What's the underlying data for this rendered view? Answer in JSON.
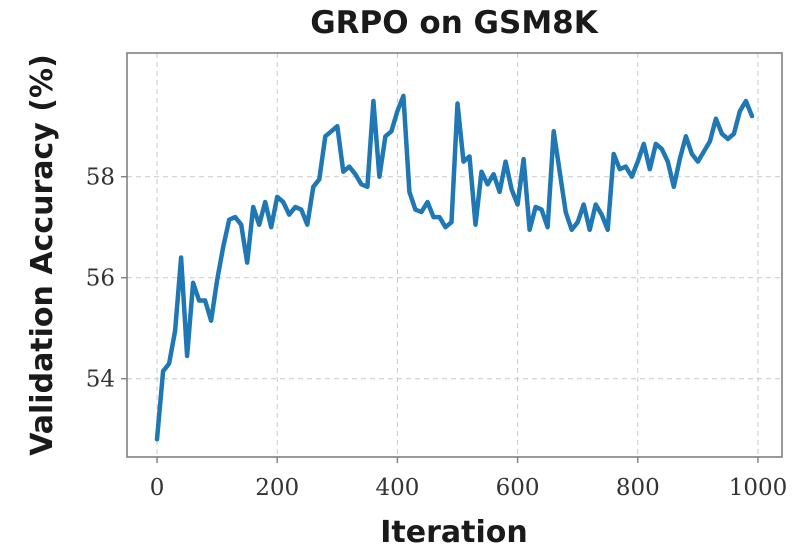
{
  "chart_data": {
    "type": "line",
    "title": "GRPO on GSM8K",
    "xlabel": "Iteration",
    "ylabel": "Validation Accuracy (%)",
    "xlim": [
      -50,
      1040
    ],
    "ylim": [
      52.45,
      60.45
    ],
    "xticks": [
      0,
      200,
      400,
      600,
      800,
      1000
    ],
    "xtick_labels": [
      "0",
      "200",
      "400",
      "600",
      "800",
      "1000"
    ],
    "yticks": [
      54,
      56,
      58
    ],
    "ytick_labels": [
      "54",
      "56",
      "58"
    ],
    "grid": true,
    "colors": {
      "line": "#1f77b4"
    },
    "series": [
      {
        "x": [
          0,
          10,
          20,
          30,
          40,
          50,
          60,
          70,
          80,
          90,
          100,
          110,
          120,
          130,
          140,
          150,
          160,
          170,
          180,
          190,
          200,
          210,
          220,
          230,
          240,
          250,
          260,
          270,
          280,
          290,
          300,
          310,
          320,
          330,
          340,
          350,
          360,
          370,
          380,
          390,
          400,
          410,
          420,
          430,
          440,
          450,
          460,
          470,
          480,
          490,
          500,
          510,
          520,
          530,
          540,
          550,
          560,
          570,
          580,
          590,
          600,
          610,
          620,
          630,
          640,
          650,
          660,
          670,
          680,
          690,
          700,
          710,
          720,
          730,
          740,
          750,
          760,
          770,
          780,
          790,
          800,
          810,
          820,
          830,
          840,
          850,
          860,
          870,
          880,
          890,
          900,
          910,
          920,
          930,
          940,
          950,
          960,
          970,
          980,
          990
        ],
        "values": [
          52.8,
          54.15,
          54.3,
          54.95,
          56.4,
          54.45,
          55.9,
          55.55,
          55.55,
          55.15,
          55.95,
          56.6,
          57.15,
          57.2,
          57.05,
          56.3,
          57.4,
          57.05,
          57.5,
          57.0,
          57.6,
          57.5,
          57.25,
          57.4,
          57.35,
          57.05,
          57.8,
          57.95,
          58.8,
          58.9,
          59.0,
          58.1,
          58.2,
          58.05,
          57.85,
          57.8,
          59.5,
          58.0,
          58.8,
          58.9,
          59.3,
          59.6,
          57.7,
          57.35,
          57.3,
          57.5,
          57.2,
          57.2,
          57.0,
          57.1,
          59.45,
          58.3,
          58.4,
          57.05,
          58.1,
          57.85,
          58.05,
          57.7,
          58.3,
          57.75,
          57.45,
          58.35,
          56.95,
          57.4,
          57.35,
          57.0,
          58.9,
          58.1,
          57.3,
          56.95,
          57.1,
          57.45,
          56.95,
          57.45,
          57.25,
          56.95,
          58.45,
          58.15,
          58.2,
          58.0,
          58.3,
          58.65,
          58.15,
          58.65,
          58.55,
          58.3,
          57.8,
          58.35,
          58.8,
          58.45,
          58.3,
          58.5,
          58.7,
          59.15,
          58.85,
          58.75,
          58.85,
          59.3,
          59.5,
          59.2
        ]
      }
    ]
  }
}
